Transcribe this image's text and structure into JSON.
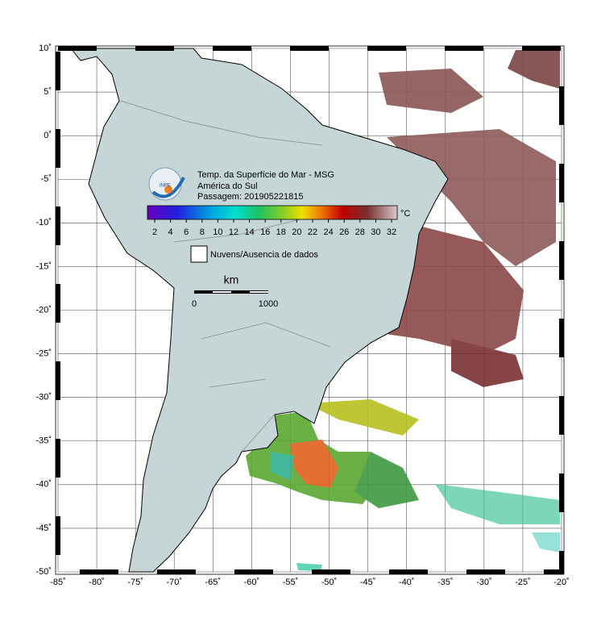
{
  "title_lines": [
    "Temp. da Superfície do Mar - MSG",
    "América do Sul",
    "Passagem: 201905221815"
  ],
  "logo": "INPE",
  "colorbar": {
    "ticks": [
      2,
      4,
      6,
      8,
      10,
      12,
      14,
      16,
      18,
      20,
      22,
      24,
      26,
      28,
      30,
      32
    ],
    "unit": "°C"
  },
  "legend": {
    "label": "Nuvens/Ausencia de dados"
  },
  "scale_bar": {
    "unit": "km",
    "labels": [
      0,
      1000
    ]
  },
  "map": {
    "lon_ticks": [
      {
        "value": -85,
        "label": "-85˚"
      },
      {
        "value": -80,
        "label": "-80˚"
      },
      {
        "value": -75,
        "label": "-75˚"
      },
      {
        "value": -70,
        "label": "-70˚"
      },
      {
        "value": -65,
        "label": "-65˚"
      },
      {
        "value": -60,
        "label": "-60˚"
      },
      {
        "value": -55,
        "label": "-55˚"
      },
      {
        "value": -50,
        "label": "-50˚"
      },
      {
        "value": -45,
        "label": "-45˚"
      },
      {
        "value": -40,
        "label": "-40˚"
      },
      {
        "value": -35,
        "label": "-35˚"
      },
      {
        "value": -30,
        "label": "-30˚"
      },
      {
        "value": -25,
        "label": "-25˚"
      },
      {
        "value": -20,
        "label": "-20˚"
      }
    ],
    "lat_ticks": [
      {
        "value": 10,
        "label": "10˚"
      },
      {
        "value": 5,
        "label": "5˚"
      },
      {
        "value": 0,
        "label": "0˚"
      },
      {
        "value": -5,
        "label": "-5˚"
      },
      {
        "value": -10,
        "label": "-10˚"
      },
      {
        "value": -15,
        "label": "-15˚"
      },
      {
        "value": -20,
        "label": "-20˚"
      },
      {
        "value": -25,
        "label": "-25˚"
      },
      {
        "value": -30,
        "label": "-30˚"
      },
      {
        "value": -35,
        "label": "-35˚"
      },
      {
        "value": -40,
        "label": "-40˚"
      },
      {
        "value": -45,
        "label": "-45˚"
      },
      {
        "value": -50,
        "label": "-50˚"
      }
    ]
  }
}
